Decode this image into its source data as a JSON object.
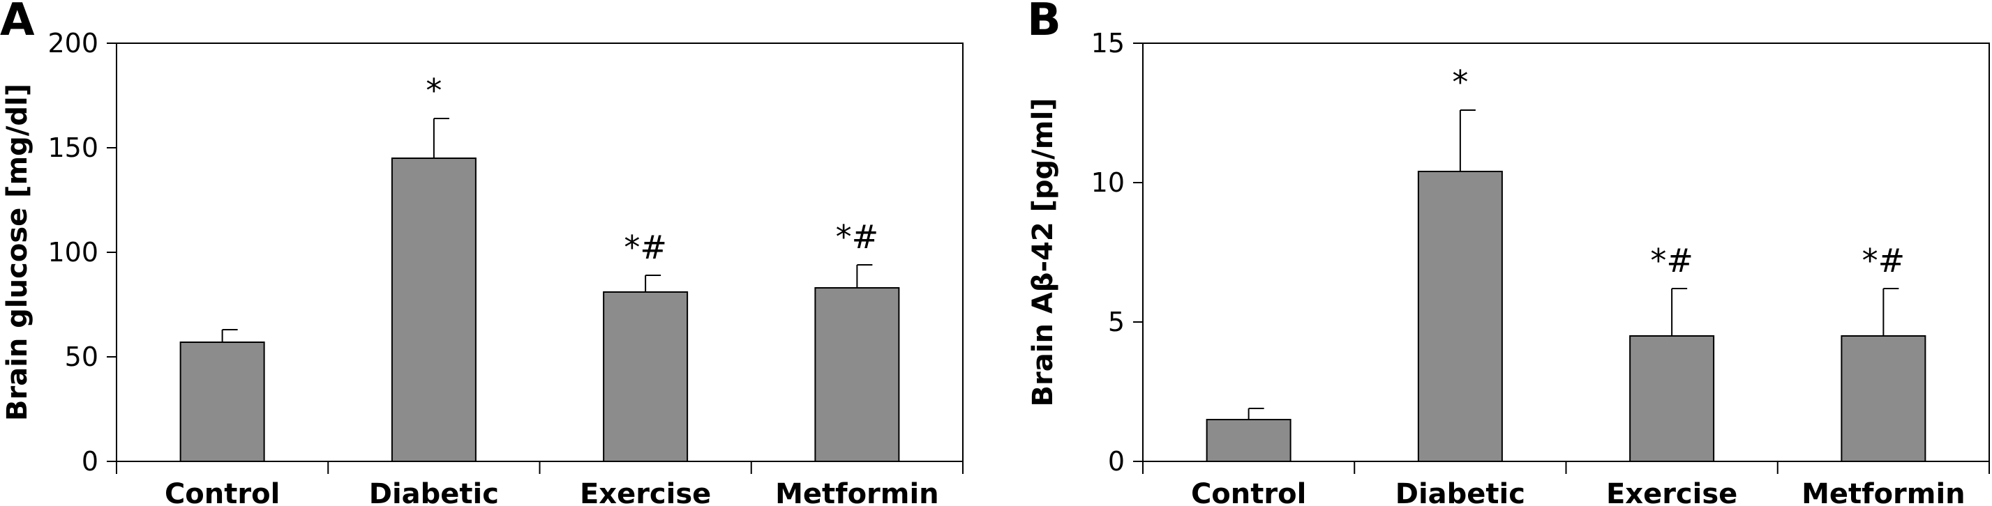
{
  "chart_data": [
    {
      "type": "bar",
      "panel_label": "A",
      "title": "",
      "xlabel": "",
      "ylabel": "Brain glucose [mg/dl]",
      "categories": [
        "Control",
        "Diabetic",
        "Exercise",
        "Metformin"
      ],
      "values": [
        57,
        145,
        81,
        83
      ],
      "error": [
        6,
        19,
        8,
        11
      ],
      "annotations": [
        "",
        "*",
        "*#",
        "*#"
      ],
      "ylim": [
        0,
        200
      ],
      "yticks": [
        0,
        50,
        100,
        150,
        200
      ],
      "bar_color": "#8c8c8c",
      "grid": false,
      "legend": "none"
    },
    {
      "type": "bar",
      "panel_label": "B",
      "title": "",
      "xlabel": "",
      "ylabel": "Brain Aβ-42 [pg/ml]",
      "categories": [
        "Control",
        "Diabetic",
        "Exercise",
        "Metformin"
      ],
      "values": [
        1.5,
        10.4,
        4.5,
        4.5
      ],
      "error": [
        0.4,
        2.2,
        1.7,
        1.7
      ],
      "annotations": [
        "",
        "*",
        "*#",
        "*#"
      ],
      "ylim": [
        0,
        15
      ],
      "yticks": [
        0,
        5,
        10,
        15
      ],
      "bar_color": "#8c8c8c",
      "grid": false,
      "legend": "none"
    }
  ]
}
